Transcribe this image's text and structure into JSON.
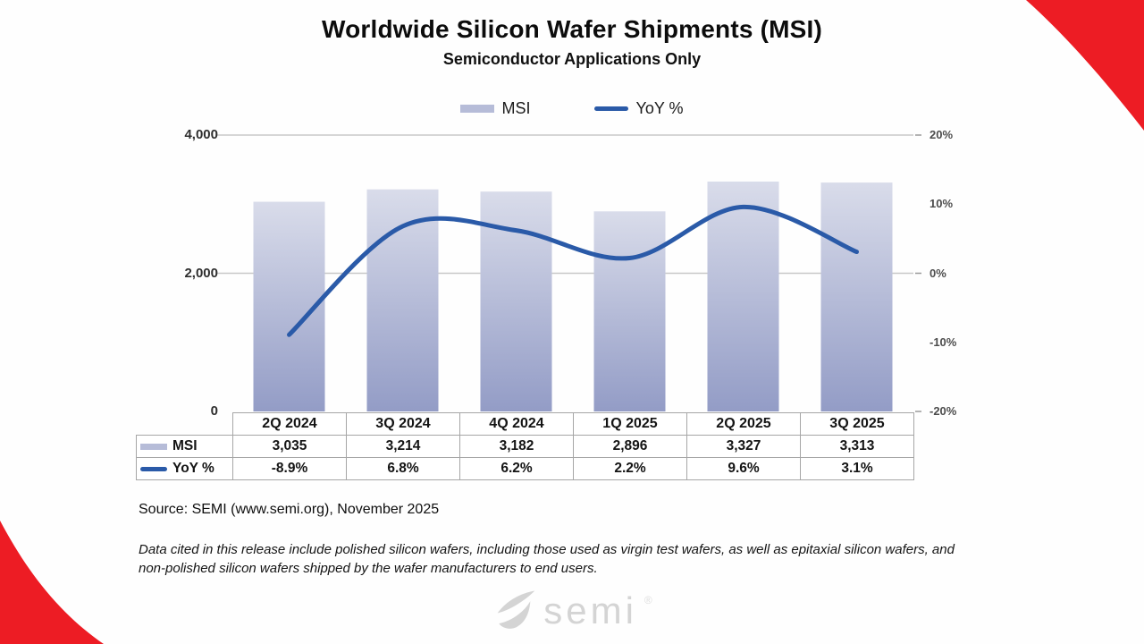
{
  "chart_data": {
    "type": "combo-bar-line",
    "title": "Worldwide Silicon Wafer Shipments (MSI)",
    "subtitle": "Semiconductor Applications Only",
    "categories": [
      "2Q 2024",
      "3Q 2024",
      "4Q 2024",
      "1Q 2025",
      "2Q 2025",
      "3Q 2025"
    ],
    "series": [
      {
        "name": "MSI",
        "type": "bar",
        "axis": "left",
        "values": [
          3035,
          3214,
          3182,
          2896,
          3327,
          3313
        ]
      },
      {
        "name": "YoY %",
        "type": "line",
        "axis": "right",
        "values": [
          -8.9,
          6.8,
          6.2,
          2.2,
          9.6,
          3.1
        ]
      }
    ],
    "left_axis": {
      "range": [
        0,
        4000
      ],
      "ticks": [
        {
          "value": 4000,
          "label": "4,000"
        },
        {
          "value": 2000,
          "label": "2,000"
        },
        {
          "value": 0,
          "label": "0"
        }
      ]
    },
    "right_axis": {
      "range": [
        -20,
        20
      ],
      "ticks": [
        {
          "value": 20,
          "label": "20%"
        },
        {
          "value": 10,
          "label": "10%"
        },
        {
          "value": 0,
          "label": "0%"
        },
        {
          "value": -10,
          "label": "-10%"
        },
        {
          "value": -20,
          "label": "-20%"
        }
      ]
    },
    "grid": true,
    "legend_position": "top"
  },
  "table": {
    "msi_row": [
      "3,035",
      "3,214",
      "3,182",
      "2,896",
      "3,327",
      "3,313"
    ],
    "yoy_row": [
      "-8.9%",
      "6.8%",
      "6.2%",
      "2.2%",
      "9.6%",
      "3.1%"
    ]
  },
  "source": "Source: SEMI (www.semi.org), November 2025",
  "footnote": "Data cited in this release include polished silicon wafers, including those used as virgin test wafers, as well as epitaxial silicon wafers, and non-polished silicon wafers shipped by the wafer manufacturers to end users.",
  "logo": {
    "text": "semi",
    "mark": "®"
  },
  "colors": {
    "accent_red": "#ED1C24",
    "bar_top": "#d9dcea",
    "bar_bottom": "#939cc6",
    "bar_swatch": "#b6bcd8",
    "line": "#2a5aa8",
    "grid": "#c8c8c8",
    "logo_gray": "#d4d4d4"
  }
}
